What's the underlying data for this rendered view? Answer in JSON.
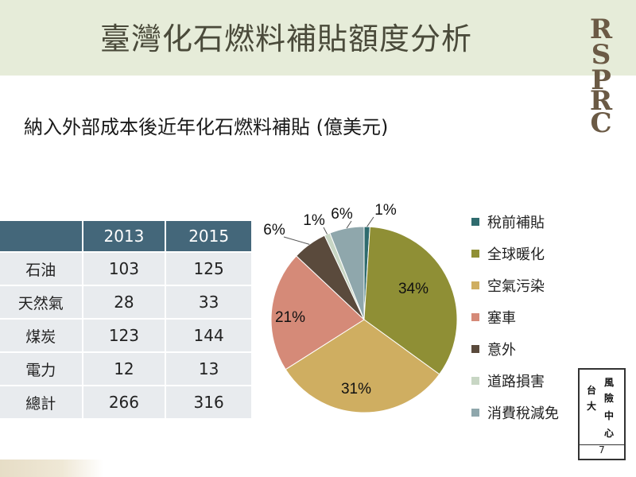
{
  "header": {
    "title": "臺灣化石燃料補貼額度分析"
  },
  "logo": {
    "text": "RSPRC"
  },
  "subtitle": "納入外部成本後近年化石燃料補貼 (億美元)",
  "table": {
    "headers": [
      "",
      "2013",
      "2015"
    ],
    "rows": [
      {
        "label": "石油",
        "v2013": "103",
        "v2015": "125"
      },
      {
        "label": "天然氣",
        "v2013": "28",
        "v2015": "33"
      },
      {
        "label": "煤炭",
        "v2013": "123",
        "v2015": "144"
      },
      {
        "label": "電力",
        "v2013": "12",
        "v2015": "13"
      },
      {
        "label": "總計",
        "v2013": "266",
        "v2015": "316"
      }
    ]
  },
  "chart_data": {
    "type": "pie",
    "categories": [
      "稅前補貼",
      "全球暖化",
      "空氣污染",
      "塞車",
      "意外",
      "道路損害",
      "消費稅減免"
    ],
    "values": [
      1,
      34,
      31,
      21,
      6,
      1,
      6
    ],
    "labels": [
      "1%",
      "34%",
      "31%",
      "21%",
      "6%",
      "1%",
      "6%"
    ],
    "colors": [
      "#2f6b6e",
      "#8f8f35",
      "#cfae61",
      "#d58a78",
      "#5a4a3c",
      "#c8d6c4",
      "#8fa7ac"
    ],
    "legend_position": "right"
  },
  "seal": {
    "chars": [
      "風",
      "險",
      "中",
      "心",
      "台",
      "大"
    ],
    "page_number": "7"
  }
}
